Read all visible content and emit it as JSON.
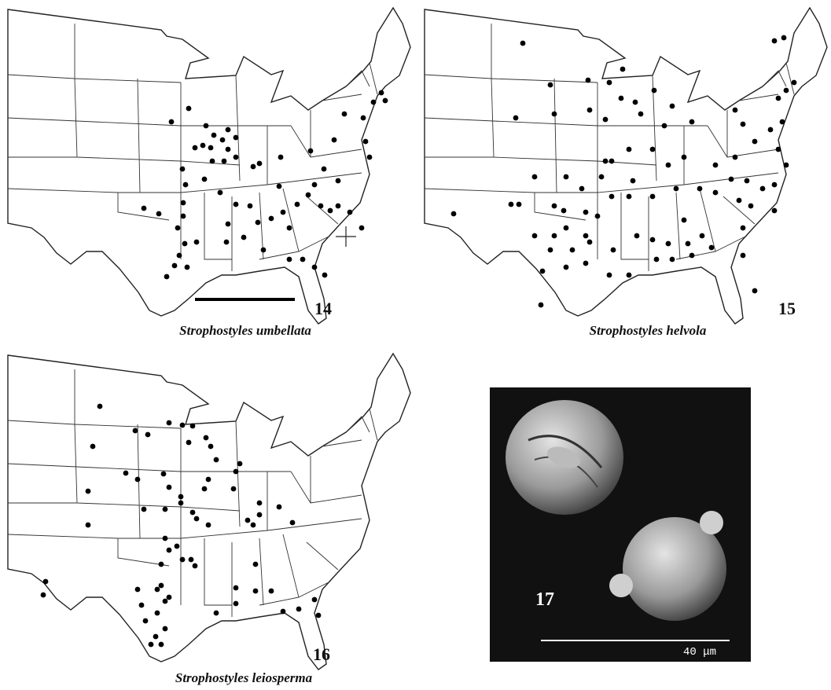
{
  "panels": [
    {
      "number": "14",
      "caption": "Strophostyles umbellata"
    },
    {
      "number": "15",
      "caption": "Strophostyles helvola"
    },
    {
      "number": "16",
      "caption": "Strophostyles leiosperma"
    },
    {
      "number": "17",
      "scale_label": "40 μm"
    }
  ]
}
